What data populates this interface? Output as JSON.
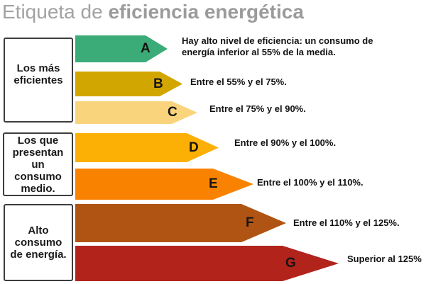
{
  "title": {
    "prefix": "Etiqueta de ",
    "emphasis": "eficiencia energética"
  },
  "groups": [
    {
      "lines": [
        "Los más",
        "eficientes"
      ]
    },
    {
      "lines": [
        "Los que",
        "presentan",
        "un",
        "consumo",
        "medio."
      ]
    },
    {
      "lines": [
        "Alto",
        "consumo",
        "de energía."
      ]
    }
  ],
  "arrows": [
    {
      "letter": "A",
      "color": "#3BAC78",
      "lines": [
        "Hay alto nivel de eficiencia: un consumo de",
        "energía inferior al 55% de la media."
      ]
    },
    {
      "letter": "B",
      "color": "#D2A600",
      "lines": [
        "Entre el 55% y el 75%."
      ]
    },
    {
      "letter": "C",
      "color": "#FAD47C",
      "lines": [
        "Entre el 75% y el 90%."
      ]
    },
    {
      "letter": "D",
      "color": "#FCAF04",
      "lines": [
        "Entre el 90% y el 100%."
      ]
    },
    {
      "letter": "E",
      "color": "#F98300",
      "lines": [
        "Entre el 100% y el 110%."
      ]
    },
    {
      "letter": "F",
      "color": "#B05414",
      "lines": [
        "Entre el 110% y el 125%."
      ]
    },
    {
      "letter": "G",
      "color": "#B2231C",
      "lines": [
        "Superior al 125%"
      ]
    }
  ]
}
